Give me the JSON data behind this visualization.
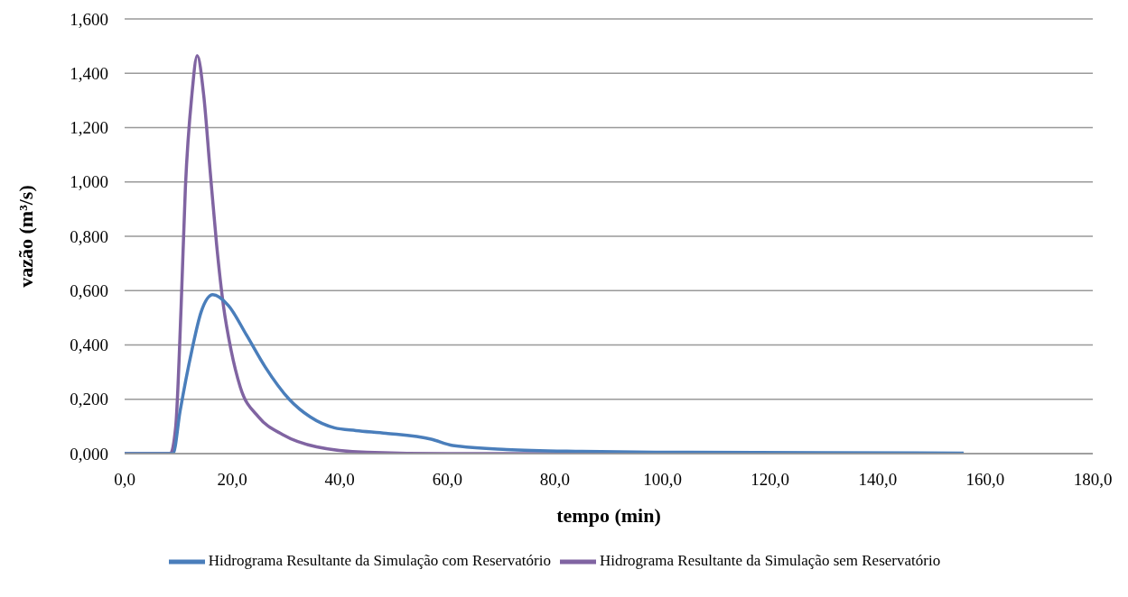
{
  "chart_data": {
    "type": "line",
    "xlabel": "tempo (min)",
    "ylabel": "vazão (m³/s)",
    "xlim": [
      0,
      180
    ],
    "xticks": [
      {
        "value": 0,
        "label": "0,0"
      },
      {
        "value": 20,
        "label": "20,0"
      },
      {
        "value": 40,
        "label": "40,0"
      },
      {
        "value": 60,
        "label": "60,0"
      },
      {
        "value": 80,
        "label": "80,0"
      },
      {
        "value": 100,
        "label": "100,0"
      },
      {
        "value": 120,
        "label": "120,0"
      },
      {
        "value": 140,
        "label": "140,0"
      },
      {
        "value": 160,
        "label": "160,0"
      },
      {
        "value": 180,
        "label": "180,0"
      }
    ],
    "ylim": [
      0,
      1.6
    ],
    "yticks": [
      {
        "value": 0,
        "label": "0,000"
      },
      {
        "value": 0.2,
        "label": "0,200"
      },
      {
        "value": 0.4,
        "label": "0,400"
      },
      {
        "value": 0.6,
        "label": "0,600"
      },
      {
        "value": 0.8,
        "label": "0,800"
      },
      {
        "value": 1,
        "label": "1,000"
      },
      {
        "value": 1.2,
        "label": "1,200"
      },
      {
        "value": 1.4,
        "label": "1,400"
      },
      {
        "value": 1.6,
        "label": "1,600"
      }
    ],
    "grid": "y",
    "legend": "bottom",
    "marker": "none",
    "line_style": "solid",
    "series": [
      {
        "name": "Hidrograma Resultante da Simulação sem Reservatório",
        "color": "#8064a2",
        "x": [
          0,
          5,
          8.5,
          9.5,
          10.5,
          11.3,
          12.5,
          13.5,
          14.7,
          15.9,
          17.1,
          18.4,
          19.8,
          21.5,
          24.9,
          29.4,
          35.7,
          45,
          60,
          100,
          156
        ],
        "values": [
          0,
          0,
          0,
          0.1,
          0.54,
          0.98,
          1.32,
          1.465,
          1.32,
          1.04,
          0.77,
          0.54,
          0.38,
          0.245,
          0.135,
          0.07,
          0.025,
          0.005,
          0,
          0,
          0
        ]
      },
      {
        "name": "Hidrograma Resultante da Simulação com Reservatório",
        "color": "#4a7ebb",
        "x": [
          0,
          5,
          9,
          10.3,
          12.5,
          14.2,
          16.4,
          19.3,
          22.7,
          26.1,
          30.6,
          34.5,
          39,
          43,
          48.6,
          57,
          61,
          71,
          85,
          100,
          130,
          156
        ],
        "values": [
          0,
          0,
          0,
          0.155,
          0.38,
          0.52,
          0.585,
          0.545,
          0.435,
          0.32,
          0.2,
          0.135,
          0.095,
          0.085,
          0.075,
          0.053,
          0.03,
          0.015,
          0.008,
          0.005,
          0.003,
          0.002
        ]
      }
    ]
  }
}
